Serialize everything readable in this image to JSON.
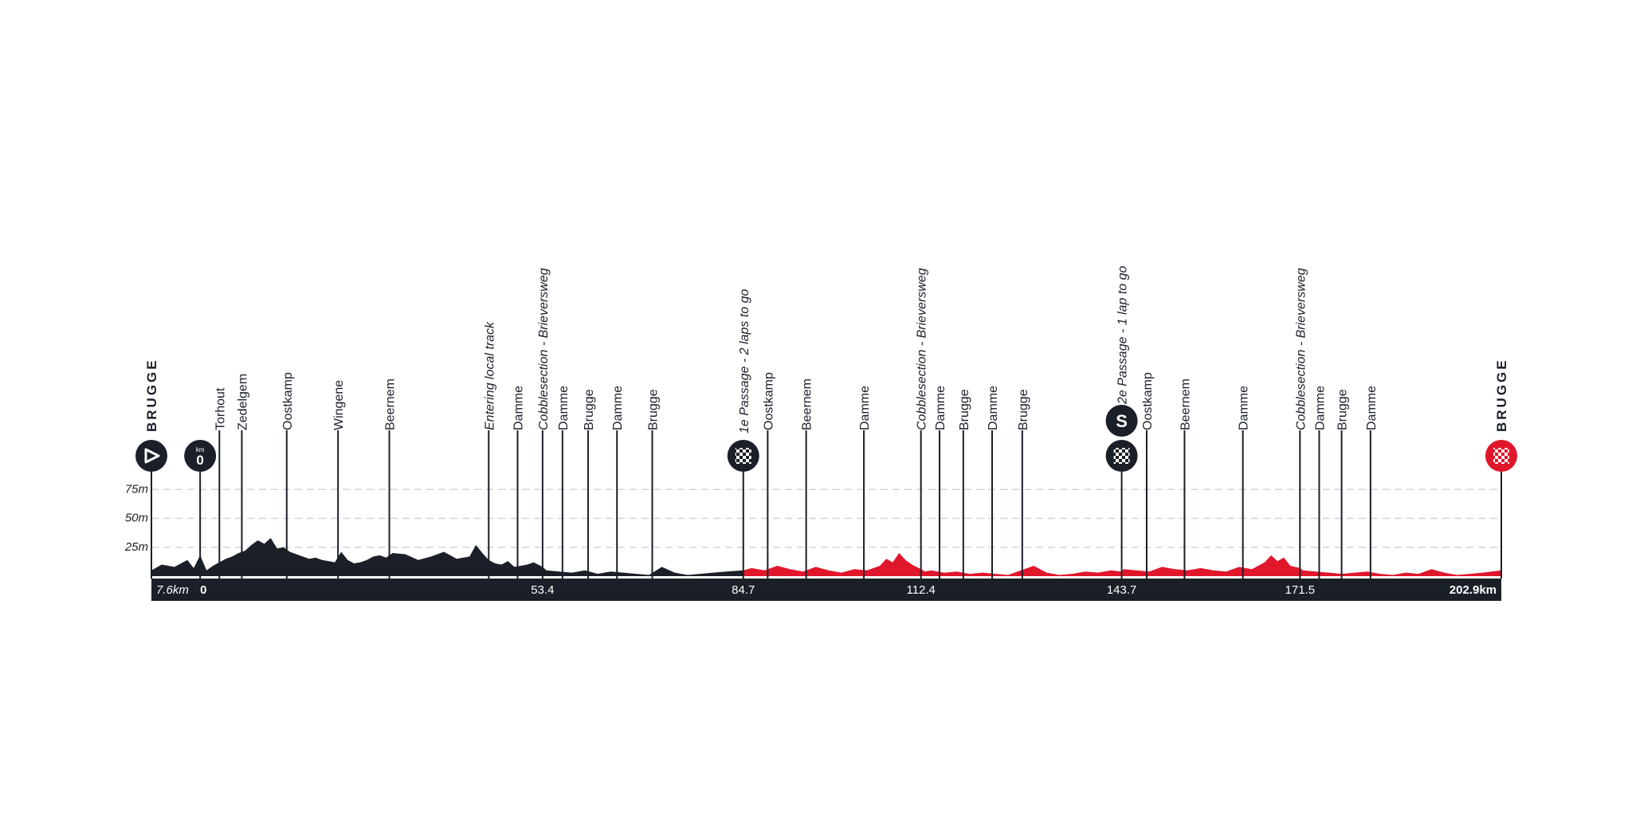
{
  "chart_data": {
    "type": "area",
    "title": "",
    "xlabel": "",
    "ylabel": "",
    "x_unit": "km",
    "xlim": [
      -7.6,
      202.9
    ],
    "ylim": [
      0,
      85
    ],
    "y_ticks": [
      {
        "value": 25,
        "label": "25m"
      },
      {
        "value": 50,
        "label": "50m"
      },
      {
        "value": 75,
        "label": "75m"
      }
    ],
    "km_bar_labels": [
      {
        "km": -7.6,
        "text": "7.6km",
        "italic": true,
        "anchor": "start"
      },
      {
        "km": 0,
        "text": "0",
        "bold": true,
        "anchor": "start"
      },
      {
        "km": 53.4,
        "text": "53.4",
        "anchor": "middle"
      },
      {
        "km": 84.7,
        "text": "84.7",
        "anchor": "middle"
      },
      {
        "km": 112.4,
        "text": "112.4",
        "anchor": "middle"
      },
      {
        "km": 143.7,
        "text": "143.7",
        "anchor": "middle"
      },
      {
        "km": 171.5,
        "text": "171.5",
        "anchor": "middle"
      },
      {
        "km": 202.9,
        "text": "202.9km",
        "bold": true,
        "anchor": "end"
      }
    ],
    "series": [
      {
        "color": "#1b1f27",
        "x": [
          -7.6,
          -6,
          -4,
          -2,
          -1,
          0,
          1,
          2,
          3,
          4,
          5,
          6,
          7,
          8,
          9,
          10,
          11,
          12,
          13,
          14,
          15,
          16,
          17,
          18,
          19,
          20,
          21,
          22,
          23,
          24,
          25,
          26,
          27,
          28,
          29,
          30,
          32,
          34,
          36,
          38,
          40,
          42,
          43,
          44,
          45,
          46,
          47,
          48,
          49,
          50,
          51,
          52,
          53.4,
          54,
          56,
          58,
          60,
          62,
          64,
          66,
          68,
          70,
          72,
          74,
          76,
          78,
          80,
          82,
          84.7
        ],
        "y": [
          5,
          10,
          8,
          14,
          7,
          18,
          5,
          9,
          12,
          15,
          17,
          20,
          22,
          27,
          31,
          28,
          33,
          24,
          25,
          21,
          19,
          17,
          15,
          16,
          14,
          13,
          12,
          21,
          14,
          11,
          12,
          14,
          17,
          18,
          16,
          20,
          19,
          14,
          17,
          21,
          15,
          17,
          27,
          20,
          14,
          11,
          10,
          13,
          8,
          9,
          10,
          12,
          8,
          5,
          4,
          3,
          5,
          2,
          4,
          3,
          2,
          1,
          8,
          3,
          1,
          2,
          3,
          4,
          5
        ]
      },
      {
        "color": "#e0162b",
        "x": [
          84.7,
          86,
          88,
          90,
          92,
          94,
          96,
          98,
          100,
          102,
          104,
          106,
          107,
          108,
          109,
          110,
          111,
          112.4,
          113,
          114,
          116,
          118,
          120,
          122,
          124,
          126,
          128,
          130,
          132,
          134,
          136,
          138,
          140,
          142,
          143.7,
          144,
          146,
          148,
          150,
          152,
          154,
          156,
          158,
          160,
          162,
          164,
          166,
          167,
          168,
          169,
          170,
          171.5,
          172,
          174,
          176,
          178,
          180,
          182,
          184,
          186,
          188,
          190,
          192,
          194,
          196,
          198,
          200,
          202.9
        ],
        "y": [
          5,
          7,
          5,
          9,
          6,
          4,
          8,
          5,
          3,
          6,
          5,
          9,
          15,
          12,
          20,
          14,
          10,
          6,
          4,
          5,
          3,
          4,
          2,
          3,
          2,
          1,
          5,
          9,
          3,
          1,
          2,
          4,
          3,
          5,
          4,
          6,
          5,
          4,
          8,
          6,
          5,
          7,
          5,
          4,
          8,
          6,
          12,
          18,
          13,
          16,
          9,
          7,
          5,
          4,
          3,
          2,
          3,
          4,
          2,
          1,
          3,
          2,
          6,
          3,
          1,
          2,
          3,
          5
        ]
      }
    ],
    "markers": [
      {
        "km": -7.6,
        "label": "BRUGGE",
        "style": "bold",
        "badge": "start"
      },
      {
        "km": 0,
        "badge": "km0",
        "badge_text": "0",
        "badge_caption": "km"
      },
      {
        "km": 3,
        "label": "Torhout"
      },
      {
        "km": 6.5,
        "label": "Zedelgem"
      },
      {
        "km": 13.5,
        "label": "Oostkamp"
      },
      {
        "km": 21.5,
        "label": "Wingene"
      },
      {
        "km": 29.5,
        "label": "Beernem"
      },
      {
        "km": 45,
        "label": "Entering local track",
        "style": "italic"
      },
      {
        "km": 49.5,
        "label": "Damme"
      },
      {
        "km": 53.4,
        "label": "Cobblesection - Brieversweg",
        "style": "italic"
      },
      {
        "km": 56.5,
        "label": "Damme"
      },
      {
        "km": 60.5,
        "label": "Brugge"
      },
      {
        "km": 65,
        "label": "Damme"
      },
      {
        "km": 70.5,
        "label": "Brugge"
      },
      {
        "km": 84.7,
        "label": "1e Passage - 2 laps to go",
        "style": "italic",
        "badge": "flag"
      },
      {
        "km": 88.5,
        "label": "Oostkamp"
      },
      {
        "km": 94.5,
        "label": "Beernem"
      },
      {
        "km": 103.5,
        "label": "Damme"
      },
      {
        "km": 112.4,
        "label": "Cobblesection - Brieversweg",
        "style": "italic"
      },
      {
        "km": 115.3,
        "label": "Damme"
      },
      {
        "km": 119,
        "label": "Brugge"
      },
      {
        "km": 123.5,
        "label": "Damme"
      },
      {
        "km": 128.2,
        "label": "Brugge"
      },
      {
        "km": 143.7,
        "label": "2e Passage - 1 lap to go",
        "style": "italic",
        "badge": "sprint",
        "badge_text": "S"
      },
      {
        "km": 147.6,
        "label": "Oostkamp"
      },
      {
        "km": 153.5,
        "label": "Beernem"
      },
      {
        "km": 162.6,
        "label": "Damme"
      },
      {
        "km": 171.5,
        "label": "Cobblesection - Brieversweg",
        "style": "italic"
      },
      {
        "km": 174.5,
        "label": "Damme"
      },
      {
        "km": 178,
        "label": "Brugge"
      },
      {
        "km": 182.5,
        "label": "Damme"
      },
      {
        "km": 202.9,
        "label": "BRUGGE",
        "style": "bold",
        "badge": "finish"
      }
    ],
    "grid": true,
    "legend": "none",
    "colors": {
      "neutral_section": "#1b1f27",
      "circuit_section": "#e0162b",
      "km_bar": "#1b1f27",
      "finish_badge": "#e0162b",
      "grid": "#d4d4d4"
    }
  }
}
